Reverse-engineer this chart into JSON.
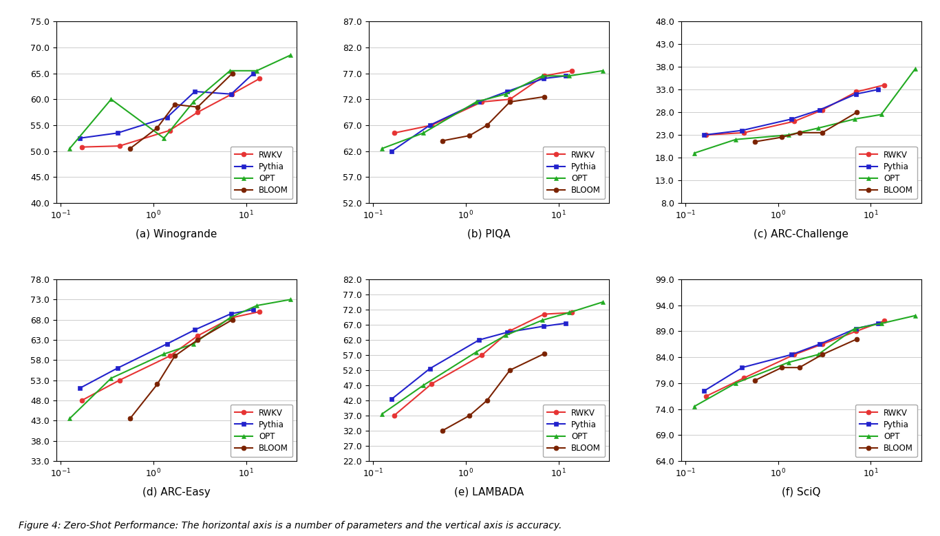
{
  "figure_caption": "Figure 4: Zero-Shot Performance: The horizontal axis is a number of parameters and the vertical axis is accuracy.",
  "models": [
    "RWKV",
    "Pythia",
    "OPT",
    "BLOOM"
  ],
  "colors": {
    "RWKV": "#e63333",
    "Pythia": "#2222cc",
    "OPT": "#22aa22",
    "BLOOM": "#7a2200"
  },
  "markers": {
    "RWKV": "o",
    "Pythia": "s",
    "OPT": "^",
    "BLOOM": "o"
  },
  "subplots": [
    {
      "title": "(a) Winogrande",
      "yticks": [
        40.0,
        45.0,
        50.0,
        55.0,
        60.0,
        65.0,
        70.0,
        75.0
      ],
      "data": {
        "RWKV": {
          "x": [
            0.169,
            0.43,
            1.5,
            3.0,
            7.0,
            14.0
          ],
          "y": [
            50.8,
            51.0,
            54.0,
            57.5,
            61.0,
            64.0
          ]
        },
        "Pythia": {
          "x": [
            0.16,
            0.41,
            1.4,
            2.8,
            6.9,
            12.0
          ],
          "y": [
            52.5,
            53.5,
            56.5,
            61.5,
            61.0,
            65.0
          ]
        },
        "OPT": {
          "x": [
            0.125,
            0.35,
            1.3,
            2.7,
            6.7,
            13.0,
            30.0
          ],
          "y": [
            50.5,
            60.0,
            52.5,
            59.5,
            65.5,
            65.5,
            68.5
          ]
        },
        "BLOOM": {
          "x": [
            0.56,
            1.1,
            1.7,
            3.0,
            7.1
          ],
          "y": [
            50.5,
            54.5,
            59.0,
            58.5,
            65.0
          ]
        }
      }
    },
    {
      "title": "(b) PIQA",
      "yticks": [
        52.0,
        57.0,
        62.0,
        67.0,
        72.0,
        77.0,
        82.0,
        87.0
      ],
      "data": {
        "RWKV": {
          "x": [
            0.169,
            0.43,
            1.5,
            3.0,
            7.0,
            14.0
          ],
          "y": [
            65.5,
            67.0,
            71.5,
            72.0,
            76.5,
            77.5
          ]
        },
        "Pythia": {
          "x": [
            0.16,
            0.41,
            1.4,
            2.8,
            6.9,
            12.0
          ],
          "y": [
            62.0,
            67.0,
            71.5,
            73.5,
            76.0,
            76.5
          ]
        },
        "OPT": {
          "x": [
            0.125,
            0.35,
            1.3,
            2.7,
            6.7,
            13.0,
            30.0
          ],
          "y": [
            62.5,
            65.5,
            71.5,
            73.0,
            76.5,
            76.5,
            77.5
          ]
        },
        "BLOOM": {
          "x": [
            0.56,
            1.1,
            1.7,
            3.0,
            7.1
          ],
          "y": [
            64.0,
            65.0,
            67.0,
            71.5,
            72.5
          ]
        }
      }
    },
    {
      "title": "(c) ARC-Challenge",
      "yticks": [
        8.0,
        13.0,
        18.0,
        23.0,
        28.0,
        33.0,
        38.0,
        43.0,
        48.0
      ],
      "data": {
        "RWKV": {
          "x": [
            0.169,
            0.43,
            1.5,
            3.0,
            7.0,
            14.0
          ],
          "y": [
            23.0,
            23.5,
            26.0,
            28.5,
            32.5,
            34.0
          ]
        },
        "Pythia": {
          "x": [
            0.16,
            0.41,
            1.4,
            2.8,
            6.9,
            12.0
          ],
          "y": [
            23.0,
            24.0,
            26.5,
            28.5,
            32.0,
            33.0
          ]
        },
        "OPT": {
          "x": [
            0.125,
            0.35,
            1.3,
            2.7,
            6.7,
            13.0,
            30.0
          ],
          "y": [
            19.0,
            22.0,
            23.0,
            24.5,
            26.5,
            27.5,
            37.5
          ]
        },
        "BLOOM": {
          "x": [
            0.56,
            1.1,
            1.7,
            3.0,
            7.1
          ],
          "y": [
            21.5,
            22.5,
            23.5,
            23.5,
            28.0
          ]
        }
      }
    },
    {
      "title": "(d) ARC-Easy",
      "yticks": [
        33.0,
        38.0,
        43.0,
        48.0,
        53.0,
        58.0,
        63.0,
        68.0,
        73.0,
        78.0
      ],
      "data": {
        "RWKV": {
          "x": [
            0.169,
            0.43,
            1.5,
            3.0,
            7.0,
            14.0
          ],
          "y": [
            48.0,
            53.0,
            59.0,
            64.0,
            68.5,
            70.0
          ]
        },
        "Pythia": {
          "x": [
            0.16,
            0.41,
            1.4,
            2.8,
            6.9,
            12.0
          ],
          "y": [
            51.0,
            56.0,
            62.0,
            65.5,
            69.5,
            70.5
          ]
        },
        "OPT": {
          "x": [
            0.125,
            0.35,
            1.3,
            2.7,
            6.7,
            13.0,
            30.0
          ],
          "y": [
            43.5,
            53.5,
            59.5,
            62.0,
            68.5,
            71.5,
            73.0
          ]
        },
        "BLOOM": {
          "x": [
            0.56,
            1.1,
            1.7,
            3.0,
            7.1
          ],
          "y": [
            43.5,
            52.0,
            59.0,
            63.0,
            68.0
          ]
        }
      }
    },
    {
      "title": "(e) LAMBADA",
      "yticks": [
        22.0,
        27.0,
        32.0,
        37.0,
        42.0,
        47.0,
        52.0,
        57.0,
        62.0,
        67.0,
        72.0,
        77.0,
        82.0
      ],
      "data": {
        "RWKV": {
          "x": [
            0.169,
            0.43,
            1.5,
            3.0,
            7.0,
            14.0
          ],
          "y": [
            37.0,
            47.5,
            57.0,
            65.0,
            70.5,
            71.0
          ]
        },
        "Pythia": {
          "x": [
            0.16,
            0.41,
            1.4,
            2.8,
            6.9,
            12.0
          ],
          "y": [
            42.5,
            52.5,
            62.0,
            64.5,
            66.5,
            67.5
          ]
        },
        "OPT": {
          "x": [
            0.125,
            0.35,
            1.3,
            2.7,
            6.7,
            13.0,
            30.0
          ],
          "y": [
            37.5,
            47.0,
            58.0,
            63.5,
            68.5,
            71.0,
            74.5
          ]
        },
        "BLOOM": {
          "x": [
            0.56,
            1.1,
            1.7,
            3.0,
            7.1
          ],
          "y": [
            32.0,
            37.0,
            42.0,
            52.0,
            57.5
          ]
        }
      }
    },
    {
      "title": "(f) SciQ",
      "yticks": [
        64.0,
        69.0,
        74.0,
        79.0,
        84.0,
        89.0,
        94.0,
        99.0
      ],
      "data": {
        "RWKV": {
          "x": [
            0.169,
            0.43,
            1.5,
            3.0,
            7.0,
            14.0
          ],
          "y": [
            76.5,
            80.0,
            84.5,
            86.5,
            89.0,
            91.0
          ]
        },
        "Pythia": {
          "x": [
            0.16,
            0.41,
            1.4,
            2.8,
            6.9,
            12.0
          ],
          "y": [
            77.5,
            82.0,
            84.5,
            86.5,
            89.5,
            90.5
          ]
        },
        "OPT": {
          "x": [
            0.125,
            0.35,
            1.3,
            2.7,
            6.7,
            13.0,
            30.0
          ],
          "y": [
            74.5,
            79.0,
            83.0,
            84.5,
            89.5,
            90.5,
            92.0
          ]
        },
        "BLOOM": {
          "x": [
            0.56,
            1.1,
            1.7,
            3.0,
            7.1
          ],
          "y": [
            79.5,
            82.0,
            82.0,
            84.5,
            87.5
          ]
        }
      }
    }
  ]
}
